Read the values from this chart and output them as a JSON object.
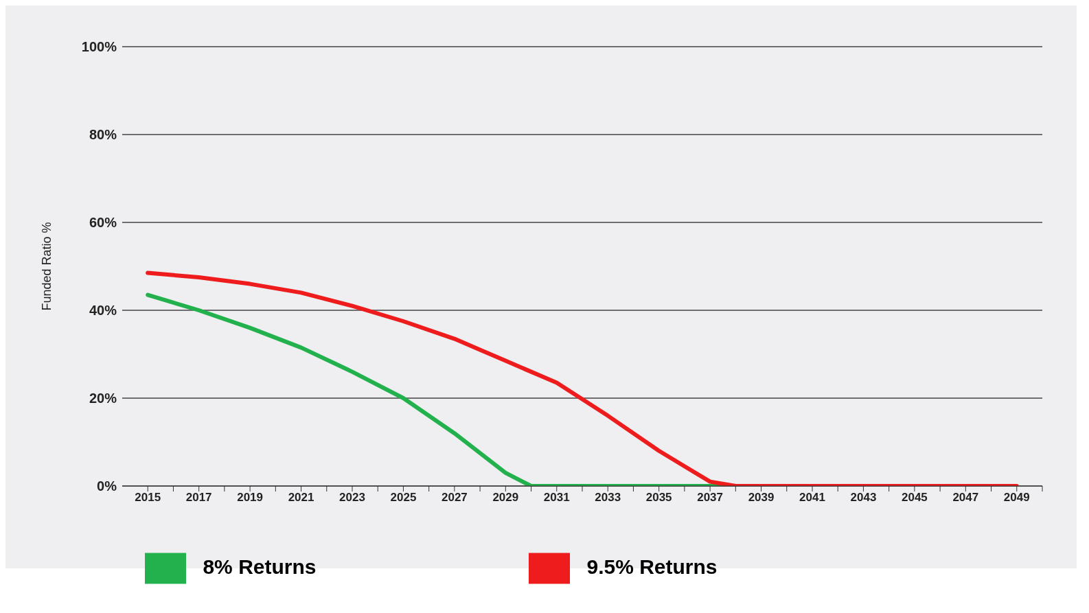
{
  "chart_data": {
    "type": "line",
    "ylabel": "Funded Ratio %",
    "legend": "bottom",
    "grid": "y",
    "marker": "none",
    "line_style": "solid",
    "xlim": [
      2014,
      2050
    ],
    "ylim": [
      0,
      100
    ],
    "yticks": [
      {
        "value": 0,
        "label": "0%"
      },
      {
        "value": 20,
        "label": "20%"
      },
      {
        "value": 40,
        "label": "40%"
      },
      {
        "value": 60,
        "label": "60%"
      },
      {
        "value": 80,
        "label": "80%"
      },
      {
        "value": 100,
        "label": "100%"
      }
    ],
    "xticks": [
      2015,
      {
        "value": 2016,
        "label": null
      },
      2017,
      {
        "value": 2018,
        "label": null
      },
      2019,
      {
        "value": 2020,
        "label": null
      },
      2021,
      {
        "value": 2022,
        "label": null
      },
      2023,
      {
        "value": 2024,
        "label": null
      },
      2025,
      {
        "value": 2026,
        "label": null
      },
      2027,
      {
        "value": 2028,
        "label": null
      },
      2029,
      {
        "value": 2030,
        "label": null
      },
      2031,
      {
        "value": 2032,
        "label": null
      },
      2033,
      {
        "value": 2034,
        "label": null
      },
      2035,
      {
        "value": 2036,
        "label": null
      },
      2037,
      {
        "value": 2038,
        "label": null
      },
      2039,
      {
        "value": 2040,
        "label": null
      },
      2041,
      {
        "value": 2042,
        "label": null
      },
      2043,
      {
        "value": 2044,
        "label": null
      },
      2045,
      {
        "value": 2046,
        "label": null
      },
      2047,
      {
        "value": 2048,
        "label": null
      },
      2049,
      {
        "value": 2050,
        "label": null
      }
    ],
    "series": [
      {
        "name": "8% Returns",
        "color": "#22b14c",
        "x": [
          2015,
          2017,
          2019,
          2021,
          2023,
          2025,
          2027,
          2029,
          2030,
          2034,
          2038
        ],
        "values": [
          43.5,
          40,
          36,
          31.5,
          26,
          20,
          12,
          3,
          0,
          0,
          0
        ]
      },
      {
        "name": "9.5% Returns",
        "color": "#ee1c1c",
        "x": [
          2015,
          2017,
          2019,
          2021,
          2023,
          2025,
          2027,
          2029,
          2031,
          2033,
          2035,
          2037,
          2038,
          2044,
          2049
        ],
        "values": [
          48.5,
          47.5,
          46,
          44,
          41,
          37.5,
          33.5,
          28.5,
          23.5,
          16,
          8,
          1,
          0,
          0,
          0
        ]
      }
    ]
  }
}
